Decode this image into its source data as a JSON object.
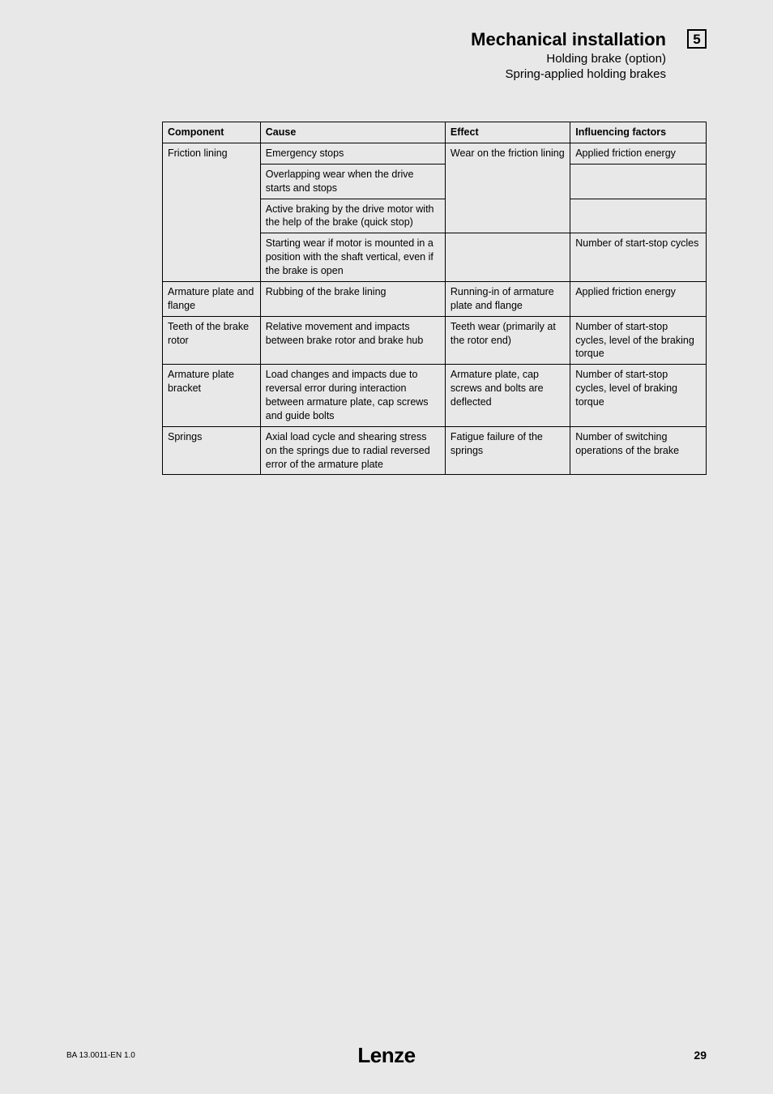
{
  "header": {
    "title": "Mechanical installation",
    "subtitle1": "Holding brake (option)",
    "subtitle2": "Spring-applied holding brakes",
    "section_number": "5"
  },
  "table": {
    "columns": [
      "Component",
      "Cause",
      "Effect",
      "Influencing factors"
    ],
    "rows": [
      {
        "component": "Friction lining",
        "component_rowspan": 4,
        "cause": "Emergency stops",
        "effect": "Wear on the friction lining",
        "effect_rowspan": 3,
        "factors": "Applied friction energy",
        "factors_rowspan": 1
      },
      {
        "cause": "Overlapping wear when the drive starts and stops",
        "factors": ""
      },
      {
        "cause": "Active braking by the drive motor with the help of the brake (quick stop)",
        "factors": ""
      },
      {
        "cause": "Starting wear if motor is mounted in a position with the shaft vertical, even if the brake is open",
        "effect": "",
        "factors": "Number of start-stop cycles"
      },
      {
        "component": "Armature plate and flange",
        "cause": "Rubbing of the brake lining",
        "effect": "Running-in of armature plate and flange",
        "factors": "Applied friction energy"
      },
      {
        "component": "Teeth of the brake rotor",
        "cause": "Relative movement and impacts between brake rotor and brake hub",
        "effect": "Teeth wear (primarily at the rotor end)",
        "factors": "Number of start-stop cycles,\nlevel of the braking torque"
      },
      {
        "component": "Armature plate bracket",
        "cause": "Load changes and impacts due to reversal error during interaction between armature plate, cap screws and guide bolts",
        "effect": "Armature plate, cap screws and bolts are deflected",
        "factors": "Number of start-stop cycles,\nlevel of braking torque"
      },
      {
        "component": "Springs",
        "cause": "Axial load cycle and shearing stress on the springs due to radial reversed error of the armature plate",
        "effect": "Fatigue failure of the springs",
        "factors": "Number of switching operations of the brake"
      }
    ]
  },
  "footer": {
    "doc_id": "BA 13.0011-EN   1.0",
    "brand": "Lenze",
    "page_number": "29"
  },
  "style": {
    "background_color": "#e8e8e8",
    "text_color": "#000000",
    "border_color": "#000000",
    "header_title_fontsize": 22,
    "header_sub_fontsize": 15,
    "table_fontsize": 12.5,
    "footer_left_fontsize": 10,
    "footer_right_fontsize": 14,
    "brand_fontsize": 26
  }
}
